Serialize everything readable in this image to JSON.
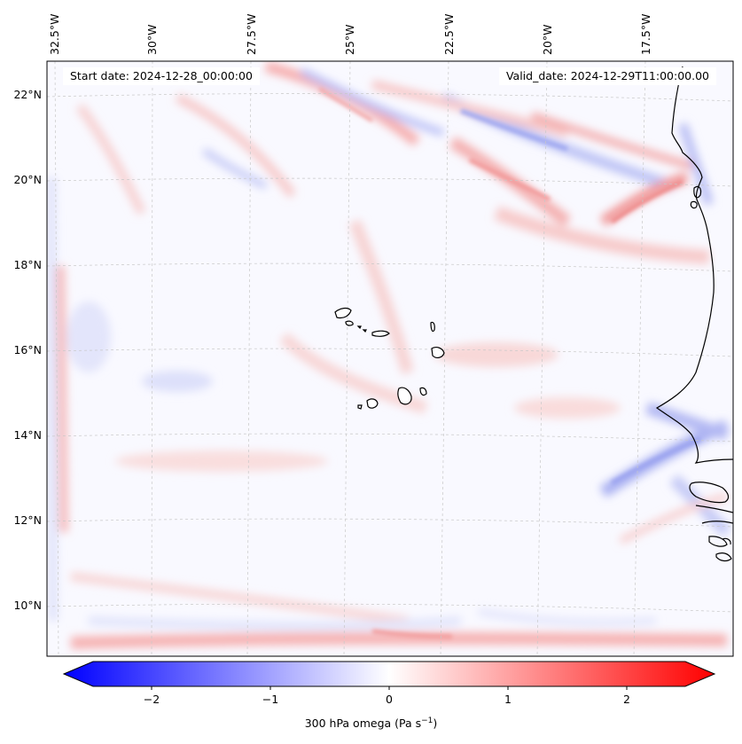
{
  "header": {
    "start_date": "Start date: 2024-12-28_00:00:00",
    "valid_date": "Valid_date: 2024-12-29T11:00:00.00"
  },
  "axes": {
    "lon_labels": [
      "32.5°W",
      "30°W",
      "27.5°W",
      "25°W",
      "22.5°W",
      "20°W",
      "17.5°W"
    ],
    "lat_labels": [
      "22°N",
      "20°N",
      "18°N",
      "16°N",
      "14°N",
      "12°N",
      "10°N"
    ],
    "grid": true
  },
  "colorbar": {
    "ticks": [
      "−2",
      "−1",
      "0",
      "1",
      "2"
    ],
    "title": "300 hPa omega (Pa s",
    "title_exp": "−1",
    "title_close": ")",
    "range": [
      -2.6,
      2.6
    ],
    "colors": {
      "negative": "#0000ff",
      "zero": "#ffffff",
      "positive": "#ff0000"
    }
  }
}
